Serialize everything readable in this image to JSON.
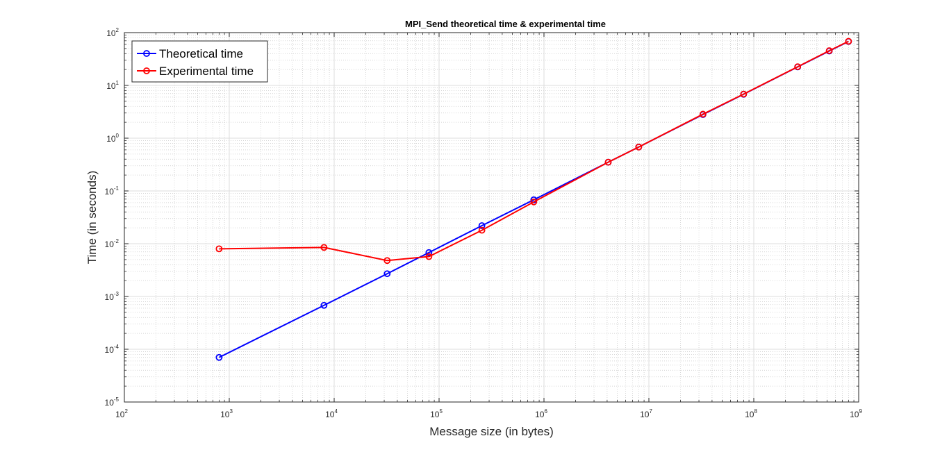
{
  "chart_data": {
    "type": "line",
    "title": "MPI_Send theoretical time & experimental time",
    "xlabel": "Message size (in bytes)",
    "ylabel": "Time (in seconds)",
    "xscale": "log",
    "yscale": "log",
    "xlim": [
      100,
      1000000000
    ],
    "ylim": [
      1e-05,
      100
    ],
    "x_ticks": [
      {
        "base": "10",
        "exp": "2"
      },
      {
        "base": "10",
        "exp": "3"
      },
      {
        "base": "10",
        "exp": "4"
      },
      {
        "base": "10",
        "exp": "5"
      },
      {
        "base": "10",
        "exp": "6"
      },
      {
        "base": "10",
        "exp": "7"
      },
      {
        "base": "10",
        "exp": "8"
      },
      {
        "base": "10",
        "exp": "9"
      }
    ],
    "y_ticks": [
      {
        "base": "10",
        "exp": "-5"
      },
      {
        "base": "10",
        "exp": "-4"
      },
      {
        "base": "10",
        "exp": "-3"
      },
      {
        "base": "10",
        "exp": "-2"
      },
      {
        "base": "10",
        "exp": "-1"
      },
      {
        "base": "10",
        "exp": "0"
      },
      {
        "base": "10",
        "exp": "1"
      },
      {
        "base": "10",
        "exp": "2"
      }
    ],
    "grid": true,
    "minor_grid": true,
    "legend_position": "top-left",
    "series": [
      {
        "name": "Theoretical time",
        "color": "#0000ff",
        "marker": "circle",
        "x": [
          800,
          8000,
          32000,
          80000,
          256000,
          800000,
          4096000,
          8000000,
          32768000,
          80000000,
          262144000,
          524288000,
          800000000
        ],
        "y": [
          7e-05,
          0.00068,
          0.0027,
          0.0068,
          0.022,
          0.068,
          0.35,
          0.68,
          2.8,
          6.8,
          22.4,
          44.8,
          68
        ]
      },
      {
        "name": "Experimental time",
        "color": "#ff0000",
        "marker": "circle",
        "x": [
          800,
          8000,
          32000,
          80000,
          256000,
          800000,
          4096000,
          8000000,
          32768000,
          80000000,
          262144000,
          524288000,
          800000000
        ],
        "y": [
          0.008,
          0.0085,
          0.0048,
          0.0057,
          0.018,
          0.062,
          0.35,
          0.68,
          2.85,
          6.85,
          22.6,
          45.5,
          68.5
        ]
      }
    ]
  }
}
